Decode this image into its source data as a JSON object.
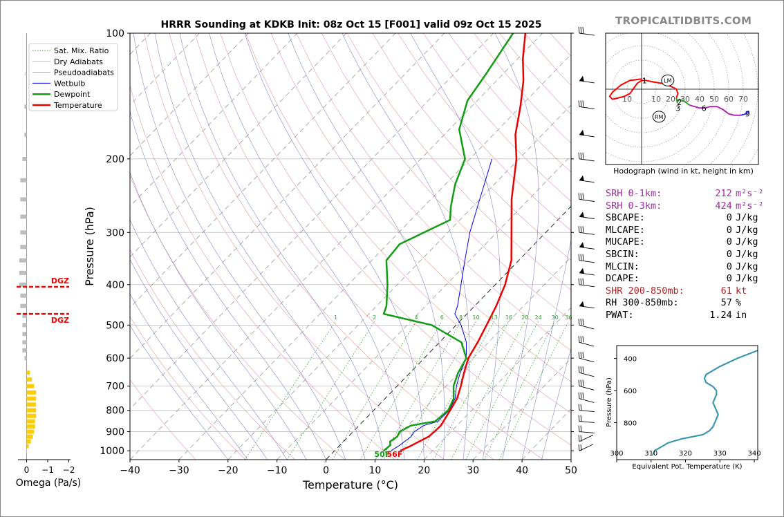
{
  "brand": "TROPICALTIDBITS.COM",
  "chart_data": [
    {
      "type": "line",
      "name": "skewt",
      "title": "HRRR Sounding at KDKB Init: 08z Oct 15 [F001] valid 09z Oct 15 2025",
      "xlabel": "Temperature (°C)",
      "ylabel": "Pressure (hPa)",
      "xlim": [
        -40,
        50
      ],
      "ylim": [
        1050,
        100
      ],
      "x_ticks": [
        -40,
        -30,
        -20,
        -10,
        0,
        10,
        20,
        30,
        40,
        50
      ],
      "x_tick_labels": [
        "−40",
        "−30",
        "−20",
        "−10",
        "0",
        "10",
        "20",
        "30",
        "40",
        "50"
      ],
      "y_ticks": [
        100,
        200,
        300,
        400,
        500,
        600,
        700,
        800,
        900,
        1000
      ],
      "y_tick_labels": [
        "100",
        "200",
        "300",
        "400",
        "500",
        "600",
        "700",
        "800",
        "900",
        "1000"
      ],
      "legend": [
        "Sat. Mix. Ratio",
        "Dry Adiabats",
        "Pseudoadiabats",
        "Wetbulb",
        "Dewpoint",
        "Temperature"
      ],
      "legend_position": "top-left",
      "mixing_ratio_labels": [
        "1",
        "2",
        "4",
        "6",
        "8",
        "10",
        "13",
        "16",
        "20",
        "24",
        "30",
        "36"
      ],
      "surface_dewpoint_label": "50F",
      "surface_temperature_label": "56F",
      "temperature": [
        [
          1000,
          13.4
        ],
        [
          970,
          14.7
        ],
        [
          925,
          16.4
        ],
        [
          900,
          16.6
        ],
        [
          870,
          16.7
        ],
        [
          850,
          16.4
        ],
        [
          800,
          15.6
        ],
        [
          750,
          14.7
        ],
        [
          700,
          13.0
        ],
        [
          650,
          11.0
        ],
        [
          600,
          9.0
        ],
        [
          550,
          7.8
        ],
        [
          500,
          6.2
        ],
        [
          450,
          4.4
        ],
        [
          400,
          2.0
        ],
        [
          350,
          -1.5
        ],
        [
          300,
          -7.0
        ],
        [
          250,
          -13.5
        ],
        [
          200,
          -20.5
        ],
        [
          175,
          -25.5
        ],
        [
          150,
          -30.0
        ],
        [
          130,
          -34.5
        ],
        [
          115,
          -39.0
        ],
        [
          100,
          -43.5
        ]
      ],
      "dewpoint": [
        [
          1000,
          10.0
        ],
        [
          970,
          10.3
        ],
        [
          950,
          9.5
        ],
        [
          925,
          10.0
        ],
        [
          900,
          9.5
        ],
        [
          870,
          10.6
        ],
        [
          850,
          14.7
        ],
        [
          800,
          15.2
        ],
        [
          750,
          14.0
        ],
        [
          700,
          11.5
        ],
        [
          650,
          9.8
        ],
        [
          600,
          8.6
        ],
        [
          550,
          4.5
        ],
        [
          500,
          -5.0
        ],
        [
          470,
          -17.0
        ],
        [
          450,
          -18.0
        ],
        [
          400,
          -22.0
        ],
        [
          350,
          -27.0
        ],
        [
          320,
          -27.5
        ],
        [
          280,
          -22.0
        ],
        [
          260,
          -24.5
        ],
        [
          230,
          -28.0
        ],
        [
          200,
          -31.0
        ],
        [
          170,
          -38.0
        ],
        [
          145,
          -42.0
        ],
        [
          125,
          -43.5
        ],
        [
          100,
          -46.0
        ]
      ],
      "wetbulb": [
        [
          1000,
          11.5
        ],
        [
          970,
          12.2
        ],
        [
          925,
          12.8
        ],
        [
          900,
          12.5
        ],
        [
          870,
          13.2
        ],
        [
          850,
          15.3
        ],
        [
          800,
          15.4
        ],
        [
          750,
          14.3
        ],
        [
          700,
          12.1
        ],
        [
          650,
          10.2
        ],
        [
          600,
          8.6
        ],
        [
          550,
          5.5
        ],
        [
          500,
          1.0
        ],
        [
          470,
          -2.5
        ],
        [
          450,
          -3.5
        ],
        [
          400,
          -7.0
        ],
        [
          350,
          -11.0
        ],
        [
          300,
          -15.5
        ],
        [
          250,
          -20.0
        ],
        [
          200,
          -25.5
        ]
      ]
    },
    {
      "type": "bar",
      "name": "omega",
      "xlabel": "Omega (Pa/s)",
      "x_tick_labels": [
        "0",
        "−1",
        "−2"
      ],
      "xlim": [
        0.5,
        -2.5
      ],
      "dgz_labels": [
        "DGZ",
        "DGZ"
      ],
      "dgz_pressures": [
        405,
        470
      ],
      "pressures": [
        125,
        150,
        175,
        200,
        225,
        250,
        275,
        300,
        325,
        350,
        375,
        400,
        425,
        450,
        475,
        500,
        525,
        550,
        575,
        600,
        650,
        675,
        700,
        725,
        750,
        775,
        800,
        825,
        850,
        875,
        900,
        925,
        950,
        975,
        1000
      ],
      "values": [
        0.05,
        0.1,
        0.1,
        0.2,
        0.3,
        0.3,
        0.3,
        0.3,
        0.3,
        0.35,
        0.35,
        0.35,
        0.3,
        0.3,
        0.2,
        0.2,
        0.2,
        0.2,
        0.2,
        0.1,
        -0.15,
        -0.25,
        -0.35,
        -0.45,
        -0.45,
        -0.45,
        -0.45,
        -0.45,
        -0.4,
        -0.4,
        -0.35,
        -0.3,
        -0.2,
        -0.1,
        0.02
      ]
    },
    {
      "type": "line",
      "name": "hodograph",
      "xlabel": "Hodograph (wind in kt, height in km)",
      "ring_labels": [
        "10",
        "10",
        "20",
        "30",
        "40",
        "50",
        "60",
        "70"
      ],
      "height_labels": [
        "1",
        "2",
        "3",
        "6",
        "9"
      ],
      "storm_motion_labels": [
        "LM",
        "RM"
      ],
      "points": [
        [
          0,
          7
        ],
        [
          -8,
          6
        ],
        [
          -14,
          3
        ],
        [
          -20,
          -2
        ],
        [
          -22,
          -5
        ],
        [
          -20,
          -7
        ],
        [
          -16,
          -6
        ],
        [
          -12,
          -5
        ],
        [
          -8,
          -3
        ],
        [
          -3,
          4
        ],
        [
          0,
          6
        ],
        [
          3,
          6
        ],
        [
          8,
          5
        ],
        [
          14,
          4
        ],
        [
          20,
          2
        ],
        [
          24,
          0
        ],
        [
          25,
          -3
        ],
        [
          24,
          -6
        ],
        [
          24.5,
          -9
        ],
        [
          26,
          -7
        ],
        [
          29,
          -8
        ],
        [
          33,
          -11
        ],
        [
          40,
          -13
        ],
        [
          44,
          -13
        ],
        [
          47,
          -12
        ],
        [
          52,
          -12
        ],
        [
          56,
          -14
        ],
        [
          60,
          -17
        ],
        [
          64,
          -18
        ],
        [
          68,
          -18
        ],
        [
          72,
          -17
        ],
        [
          74,
          -15
        ]
      ],
      "colors": [
        "#ff0000",
        "#2ca02c",
        "#b324b3",
        "#3333ff"
      ]
    },
    {
      "type": "line",
      "name": "theta_e",
      "xlabel": "Equivalent Pot. Temperature (K)",
      "ylabel": "Pressure (hPa)",
      "xlim": [
        300,
        341
      ],
      "ylim": [
        1030,
        320
      ],
      "x_ticks": [
        300,
        310,
        320,
        330,
        340
      ],
      "y_ticks": [
        400,
        600,
        800
      ],
      "points": [
        [
          1000,
          310.5
        ],
        [
          975,
          311
        ],
        [
          950,
          313
        ],
        [
          925,
          315
        ],
        [
          900,
          319
        ],
        [
          875,
          325
        ],
        [
          850,
          327
        ],
        [
          825,
          328
        ],
        [
          800,
          328.5
        ],
        [
          775,
          329
        ],
        [
          750,
          329.5
        ],
        [
          725,
          329
        ],
        [
          700,
          328.5
        ],
        [
          675,
          328
        ],
        [
          650,
          328.5
        ],
        [
          625,
          329
        ],
        [
          600,
          329
        ],
        [
          575,
          328
        ],
        [
          550,
          326
        ],
        [
          525,
          325.5
        ],
        [
          500,
          326
        ],
        [
          450,
          330
        ],
        [
          400,
          335
        ],
        [
          350,
          341
        ]
      ],
      "color": "#3a97b0"
    }
  ],
  "parameters": [
    {
      "label": "SRH 0-1km:",
      "value": "212",
      "unit": "m²s⁻²",
      "color": "#a02ca0"
    },
    {
      "label": "SRH 0-3km:",
      "value": "424",
      "unit": "m²s⁻²",
      "color": "#a02ca0"
    },
    {
      "label": "SBCAPE:",
      "value": "0",
      "unit": "J/kg",
      "color": "#000000"
    },
    {
      "label": "MLCAPE:",
      "value": "0",
      "unit": "J/kg",
      "color": "#000000"
    },
    {
      "label": "MUCAPE:",
      "value": "0",
      "unit": "J/kg",
      "color": "#000000"
    },
    {
      "label": "SBCIN:",
      "value": "0",
      "unit": "J/kg",
      "color": "#000000"
    },
    {
      "label": "MLCIN:",
      "value": "0",
      "unit": "J/kg",
      "color": "#000000"
    },
    {
      "label": "DCAPE:",
      "value": "0",
      "unit": "J/kg",
      "color": "#000000"
    },
    {
      "label": "SHR 200-850mb:",
      "value": "61",
      "unit": "kt",
      "color": "#b22222"
    },
    {
      "label": "RH 300-850mb:",
      "value": "57",
      "unit": "%",
      "color": "#000000"
    },
    {
      "label": "PWAT:",
      "value": "1.24",
      "unit": "in",
      "color": "#000000"
    }
  ]
}
